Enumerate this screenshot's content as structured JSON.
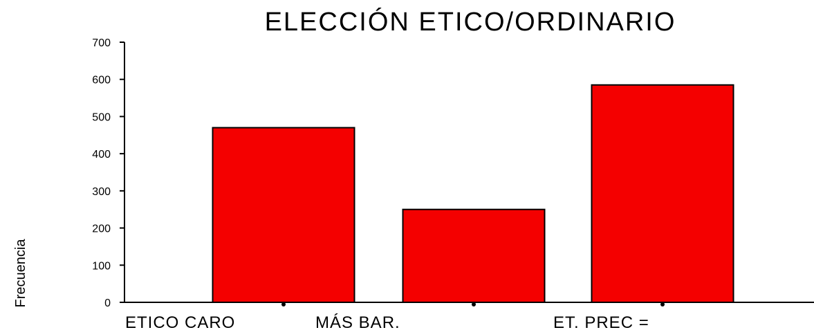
{
  "chart_data": {
    "type": "bar",
    "title": "ELECCIÓN ETICO/ORDINARIO",
    "xlabel": "",
    "ylabel": "Frecuencia",
    "categories": [
      "ETICO CARO",
      "MÁS BAR.",
      "ET. PREC ="
    ],
    "values": [
      470,
      250,
      585
    ],
    "ylim": [
      0,
      700
    ],
    "yticks": [
      0,
      100,
      200,
      300,
      400,
      500,
      600,
      700
    ],
    "grid": false,
    "legend": "none",
    "colors": {
      "bar": "#f40000",
      "axis": "#000000",
      "text": "#000000"
    }
  }
}
